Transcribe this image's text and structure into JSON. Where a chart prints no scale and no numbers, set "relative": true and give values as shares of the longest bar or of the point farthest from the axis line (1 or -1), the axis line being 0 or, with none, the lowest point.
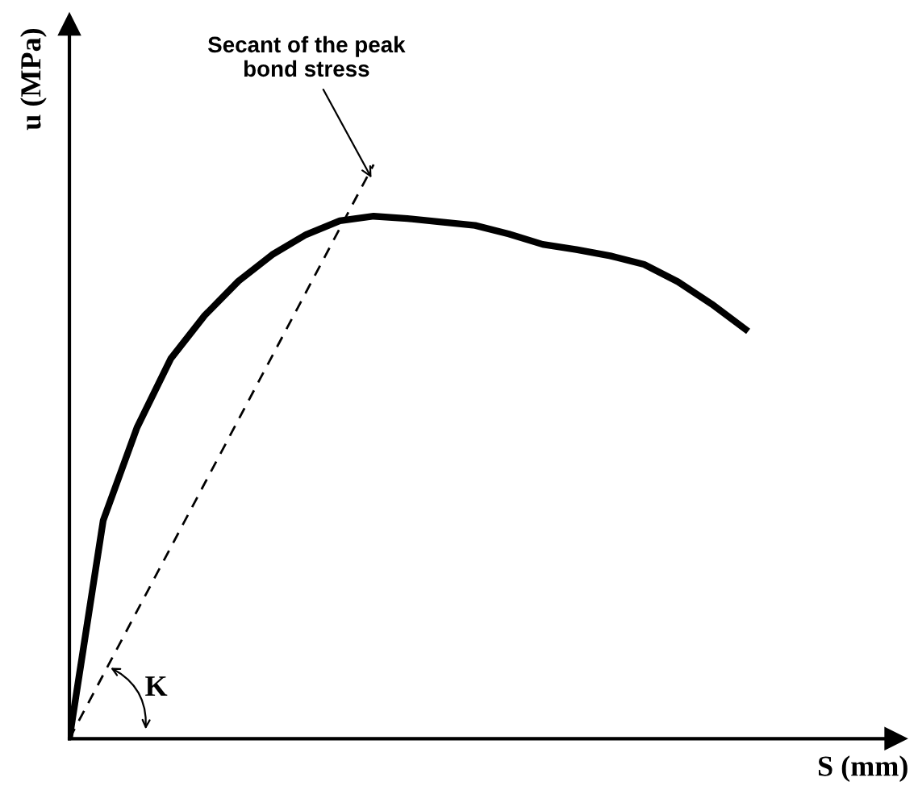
{
  "chart_data": {
    "type": "line",
    "relative": true,
    "xlabel": "S (mm)",
    "ylabel": "u (MPa)",
    "categories": [
      null,
      null,
      null,
      null,
      null,
      null,
      null,
      null,
      null,
      null,
      null,
      null,
      null,
      null,
      null,
      null,
      null,
      null,
      null,
      null,
      null
    ],
    "series": [
      {
        "color": "#000000",
        "line_style": "solid",
        "values": [
          0,
          0.38,
          0.542,
          0.662,
          0.737,
          0.797,
          0.843,
          0.878,
          0.902,
          0.91,
          0.906,
          0.9,
          0.894,
          0.879,
          0.861,
          0.852,
          0.841,
          0.826,
          0.796,
          0.757,
          0.713
        ]
      },
      {
        "color": "#000000",
        "line_style": "dashed",
        "values": [
          0,
          null,
          null,
          null,
          null,
          null,
          null,
          null,
          null,
          1.0,
          null,
          null,
          null,
          null,
          null,
          null,
          null,
          null,
          null,
          null,
          null
        ]
      }
    ],
    "annotations": [
      "Secant of the peak\nbond stress",
      "K"
    ]
  }
}
